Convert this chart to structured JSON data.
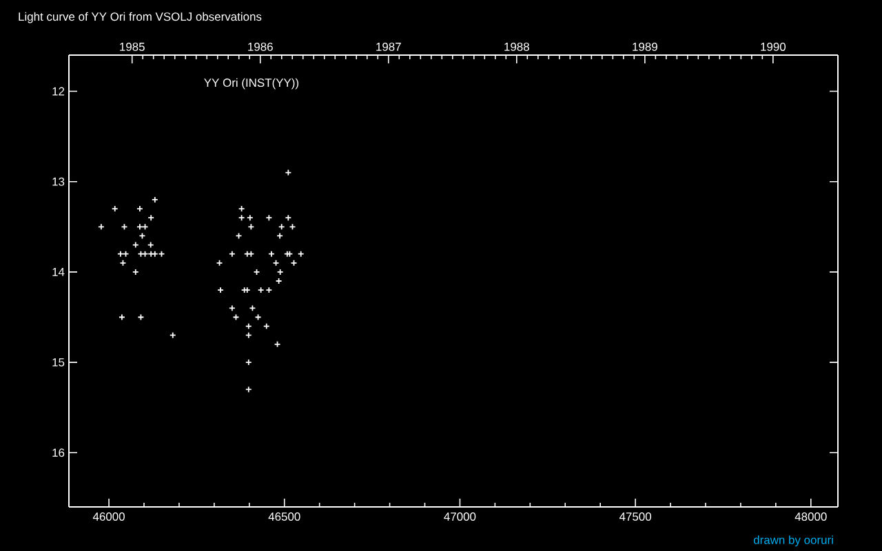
{
  "chart_data": {
    "type": "scatter",
    "title": "Light curve of YY Ori from VSOLJ observations",
    "annotations": [
      "YY Ori (INST(YY))",
      "drawn by ooruri"
    ],
    "marker": "cross",
    "series": [
      {
        "color": "#ffffff",
        "x": [
          46131,
          46017,
          46088,
          46120,
          45978,
          46044,
          46088,
          46103,
          46095,
          46076,
          46119,
          46033,
          46048,
          46091,
          46103,
          46120,
          46131,
          46150,
          46040,
          46076,
          46037,
          46091,
          46182,
          46511,
          46378,
          46378,
          46402,
          46456,
          46511,
          46405,
          46492,
          46523,
          46370,
          46487,
          46351,
          46394,
          46405,
          46463,
          46508,
          46515,
          46547,
          46315,
          46476,
          46527,
          46421,
          46488,
          46484,
          46318,
          46386,
          46394,
          46433,
          46456,
          46351,
          46409,
          46362,
          46425,
          46398,
          46449,
          46398,
          46480,
          46398,
          46398
        ],
        "values": [
          13.2,
          13.3,
          13.3,
          13.4,
          13.5,
          13.5,
          13.5,
          13.5,
          13.6,
          13.7,
          13.7,
          13.8,
          13.8,
          13.8,
          13.8,
          13.8,
          13.8,
          13.8,
          13.9,
          14.0,
          14.5,
          14.5,
          14.7,
          12.9,
          13.3,
          13.4,
          13.4,
          13.4,
          13.4,
          13.5,
          13.5,
          13.5,
          13.6,
          13.6,
          13.8,
          13.8,
          13.8,
          13.8,
          13.8,
          13.8,
          13.8,
          13.9,
          13.9,
          13.9,
          14.0,
          14.0,
          14.1,
          14.2,
          14.2,
          14.2,
          14.2,
          14.2,
          14.4,
          14.4,
          14.5,
          14.5,
          14.6,
          14.6,
          14.7,
          14.8,
          15.0,
          15.3
        ]
      }
    ],
    "xlim": [
      45886,
      48077
    ],
    "xticks": [
      46000,
      46500,
      47000,
      47500,
      48000
    ],
    "ylim": [
      16.6,
      11.6
    ],
    "yticks": [
      12,
      13,
      14,
      15,
      16
    ],
    "x2lim": [
      1984.507,
      1990.506
    ],
    "x2ticks": [
      1985,
      1986,
      1987,
      1988,
      1989,
      1990
    ]
  }
}
